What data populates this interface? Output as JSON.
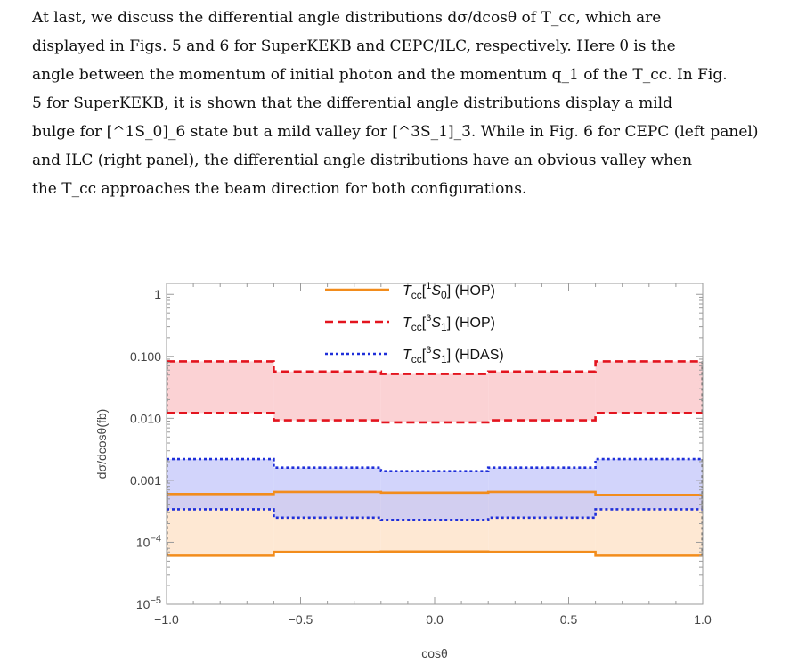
{
  "paragraph": {
    "lines": [
      "At last, we discuss the differential angle distributions dσ/dcosθ of T_cc, which are",
      "displayed in Figs. 5 and 6 for SuperKEKB and CEPC/ILC, respectively. Here θ is the",
      "angle between the momentum of initial photon and the momentum q_1 of the T_cc. In Fig.",
      "5 for SuperKEKB, it is shown that the differential angle distributions display a mild",
      "bulge for [^1S_0]_6 state but a mild valley for [^3S_1]_3̄. While in Fig. 6 for CEPC (left panel)",
      "and ILC (right panel), the differential angle distributions have an obvious valley when",
      "the T_cc approaches the beam direction for both configurations."
    ]
  },
  "chart_data": {
    "type": "area",
    "xlabel": "cosθ",
    "ylabel": "dσ/dcosθ(fb)",
    "xlim": [
      -1.0,
      1.0
    ],
    "ylim": [
      1e-05,
      1.5
    ],
    "yscale": "log",
    "x_ticks": [
      "−1.0",
      "−0.5",
      "0.0",
      "0.5",
      "1.0"
    ],
    "x_tick_values": [
      -1.0,
      -0.5,
      0.0,
      0.5,
      1.0
    ],
    "y_ticks": [
      "1",
      "0.100",
      "0.010",
      "0.001",
      "10^-4",
      "10^-5"
    ],
    "y_tick_values": [
      1,
      0.1,
      0.01,
      0.001,
      0.0001,
      1e-05
    ],
    "bin_edges": [
      -1.0,
      -0.6,
      -0.2,
      0.2,
      0.6,
      1.0
    ],
    "legend_position": "top-center",
    "series": [
      {
        "name": "Tcc[1S0] (HOP)",
        "style": "solid",
        "color": "#f28c1c",
        "fill": "#fde0c4",
        "upper": [
          0.0006,
          0.00065,
          0.00063,
          0.00065,
          0.00058
        ],
        "lower": [
          6.1e-05,
          7e-05,
          7.1e-05,
          7e-05,
          6.1e-05
        ]
      },
      {
        "name": "Tcc[3S1] (HOP)",
        "style": "dashed",
        "color": "#e3141e",
        "fill": "#f9c3c6",
        "upper": [
          0.083,
          0.057,
          0.052,
          0.057,
          0.083
        ],
        "lower": [
          0.0122,
          0.0093,
          0.0086,
          0.0093,
          0.0122
        ]
      },
      {
        "name": "Tcc[3S1] (HDAS)",
        "style": "dotted",
        "color": "#1f2fd9",
        "fill": "#c3c6f9",
        "upper": [
          0.0022,
          0.0016,
          0.0014,
          0.0016,
          0.0022
        ],
        "lower": [
          0.00034,
          0.00025,
          0.00023,
          0.00025,
          0.00034
        ]
      }
    ]
  },
  "colors": {
    "frame": "#9a9a9a",
    "text": "#111111"
  }
}
